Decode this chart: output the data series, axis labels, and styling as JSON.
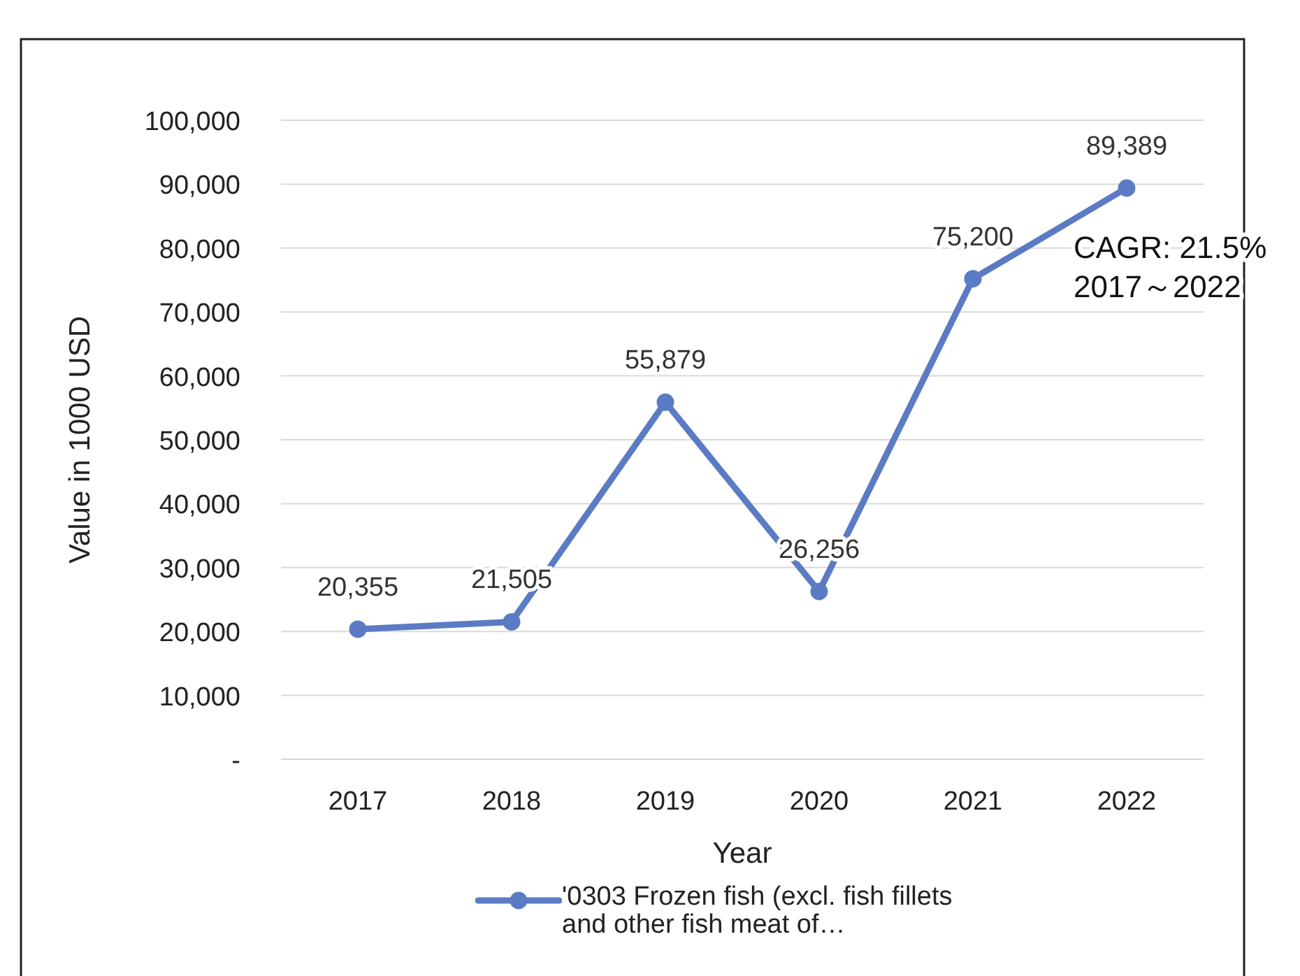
{
  "chart_data": {
    "type": "line",
    "xlabel": "Year",
    "ylabel": "Value in 1000 USD",
    "categories": [
      "2017",
      "2018",
      "2019",
      "2020",
      "2021",
      "2022"
    ],
    "series": [
      {
        "name": "'0303 Frozen fish (excl. fish fillets and other fish meat of…",
        "color": "#5b7bc4",
        "values": [
          20355,
          21505,
          55879,
          26256,
          75200,
          89389
        ]
      }
    ],
    "value_labels": [
      "20,355",
      "21,505",
      "55,879",
      "26,256",
      "75,200",
      "89,389"
    ],
    "ylim": [
      0,
      100000
    ],
    "yticks": [
      {
        "value": 0,
        "label": "-"
      },
      {
        "value": 10000,
        "label": "10,000"
      },
      {
        "value": 20000,
        "label": "20,000"
      },
      {
        "value": 30000,
        "label": "30,000"
      },
      {
        "value": 40000,
        "label": "40,000"
      },
      {
        "value": 50000,
        "label": "50,000"
      },
      {
        "value": 60000,
        "label": "60,000"
      },
      {
        "value": 70000,
        "label": "70,000"
      },
      {
        "value": 80000,
        "label": "80,000"
      },
      {
        "value": 90000,
        "label": "90,000"
      },
      {
        "value": 100000,
        "label": "100,000"
      }
    ],
    "annotations": [
      {
        "text": "CAGR: 21.5%\n2017～2022",
        "x": "2022",
        "y": 89389
      }
    ],
    "grid": "y",
    "legend": "bottom",
    "marker": "circle",
    "line_style": "solid"
  }
}
